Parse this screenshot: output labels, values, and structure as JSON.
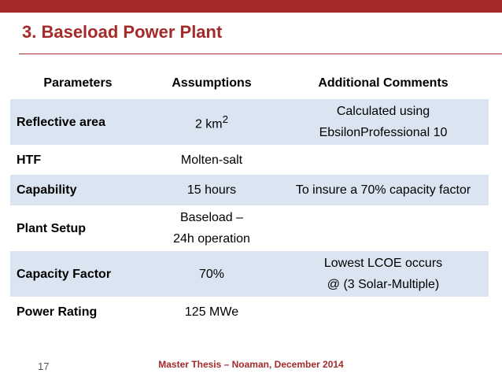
{
  "slide": {
    "title": "3. Baseload Power Plant",
    "footer": "Master Thesis – Noaman, December 2014",
    "page_number": "17",
    "accent_color": "#a52a2a",
    "row_shade_color": "#dbe5f1"
  },
  "table": {
    "headers": [
      "Parameters",
      "Assumptions",
      "Additional Comments"
    ],
    "rows": [
      {
        "parameter": "Reflective area",
        "assumption": "2 km",
        "assumption_sup": "2",
        "comment_line1": "Calculated using",
        "comment_line2": "EbsilonProfessional 10"
      },
      {
        "parameter": "HTF",
        "assumption": "Molten-salt",
        "comment_line1": ""
      },
      {
        "parameter": "Capability",
        "assumption": "15 hours",
        "comment_line1": "To insure a 70% capacity factor"
      },
      {
        "parameter": "Plant Setup",
        "assumption_line1": "Baseload –",
        "assumption_line2": "24h operation",
        "comment_line1": ""
      },
      {
        "parameter": "Capacity Factor",
        "assumption": "70%",
        "comment_line1": "Lowest LCOE occurs",
        "comment_line2": "@ (3 Solar-Multiple)"
      },
      {
        "parameter": "Power Rating",
        "assumption": "125 MWe",
        "comment_line1": ""
      }
    ]
  }
}
